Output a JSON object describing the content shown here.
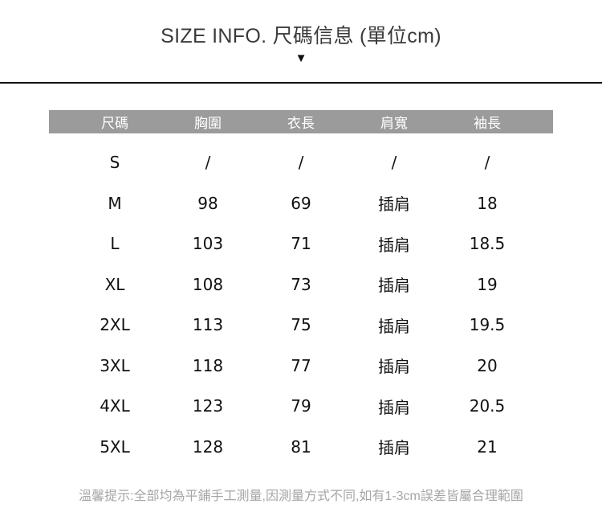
{
  "page": {
    "title": "SIZE INFO. 尺碼信息 (單位cm)",
    "triangle_icon": "▼",
    "note": "溫馨提示:全部均為平鋪手工測量,因測量方式不同,如有1-3cm誤差皆屬合理範圍"
  },
  "size_table": {
    "columns": [
      "尺碼",
      "胸圍",
      "衣長",
      "肩寬",
      "袖長"
    ],
    "rows": [
      [
        "S",
        "/",
        "/",
        "/",
        "/"
      ],
      [
        "M",
        "98",
        "69",
        "插肩",
        "18"
      ],
      [
        "L",
        "103",
        "71",
        "插肩",
        "18.5"
      ],
      [
        "XL",
        "108",
        "73",
        "插肩",
        "19"
      ],
      [
        "2XL",
        "113",
        "75",
        "插肩",
        "19.5"
      ],
      [
        "3XL",
        "118",
        "77",
        "插肩",
        "20"
      ],
      [
        "4XL",
        "123",
        "79",
        "插肩",
        "20.5"
      ],
      [
        "5XL",
        "128",
        "81",
        "插肩",
        "21"
      ]
    ]
  },
  "colors": {
    "header_bg": "#9b9b9b",
    "header_text": "#ffffff",
    "body_text": "#111111",
    "title_text": "#3a3a3a",
    "note_text": "#a6a6a6",
    "divider": "#111111"
  }
}
